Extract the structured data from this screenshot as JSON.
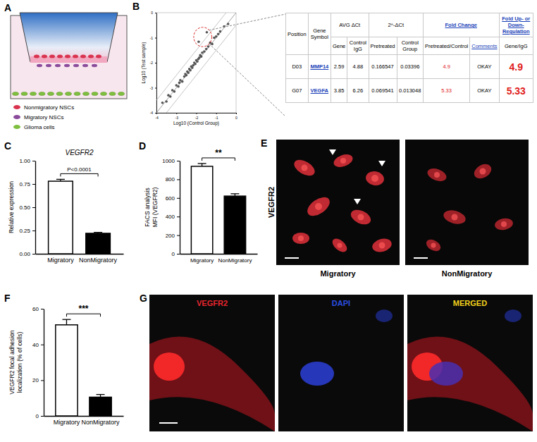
{
  "chart_data": [
    {
      "type": "scatter",
      "xlabel": "Log10 (Control Group)",
      "ylabel": "Log10 (Test sample)",
      "x": [
        -3.7,
        -3.5,
        -3.4,
        -3.3,
        -3.2,
        -3.1,
        -3.0,
        -2.9,
        -2.85,
        -2.8,
        -2.7,
        -2.6,
        -2.55,
        -2.5,
        -2.45,
        -2.4,
        -2.35,
        -2.3,
        -2.25,
        -2.2,
        -2.15,
        -2.1,
        -2.05,
        -2.0,
        -1.95,
        -1.9,
        -1.85,
        -1.8,
        -1.75,
        -1.7,
        -1.6,
        -1.5,
        -1.4,
        -1.3,
        -1.2,
        -1.1,
        -1.0,
        -0.9,
        -0.8,
        -0.6,
        -0.4,
        -1.88,
        -1.47
      ],
      "y": [
        -3.6,
        -3.55,
        -3.3,
        -3.35,
        -3.1,
        -3.15,
        -2.9,
        -2.95,
        -2.8,
        -2.7,
        -2.75,
        -2.55,
        -2.45,
        -2.5,
        -2.35,
        -2.4,
        -2.25,
        -2.3,
        -2.15,
        -2.2,
        -2.1,
        -2.0,
        -2.05,
        -1.9,
        -1.95,
        -1.85,
        -1.8,
        -1.7,
        -1.75,
        -1.6,
        -1.55,
        -1.45,
        -1.35,
        -1.2,
        -1.25,
        -1.0,
        -0.95,
        -0.85,
        -0.75,
        -0.55,
        -0.45,
        -1.16,
        -0.78
      ],
      "xlim": [
        -4,
        0
      ],
      "ylim": [
        -4,
        0
      ],
      "xticks": [
        -4,
        -3,
        -2,
        -1,
        0
      ],
      "yticks": [
        -4,
        -3,
        -2,
        -1,
        0
      ],
      "boundary_offsets": [
        -0.5,
        0,
        0.5
      ],
      "color": "#555555"
    },
    {
      "type": "bar",
      "title": "VEGFR2",
      "ylabel": [
        "Relative expression"
      ],
      "categories": [
        "Migratory",
        "NonMigratory"
      ],
      "values": [
        0.78,
        0.22
      ],
      "errors": [
        0.02,
        0.01
      ],
      "colors": [
        "#ffffff",
        "#000000"
      ],
      "ylim": [
        0,
        1
      ],
      "yticks": [
        {
          "value": 0,
          "label": "0.00"
        },
        {
          "value": 0.25,
          "label": "0.25"
        },
        {
          "value": 0.5,
          "label": "0.50"
        },
        {
          "value": 0.75,
          "label": "0.75"
        },
        {
          "value": 1,
          "label": "1.00"
        }
      ],
      "annotation": "P<0.0001"
    },
    {
      "type": "bar",
      "ylabel": [
        "FACS analysis",
        "MFI (VEGFR2)"
      ],
      "categories": [
        "Migratory",
        "NonMigratory"
      ],
      "values": [
        940,
        620
      ],
      "errors": [
        30,
        25
      ],
      "colors": [
        "#ffffff",
        "#000000"
      ],
      "ylim": [
        0,
        1000
      ],
      "yticks": [
        0,
        200,
        400,
        600,
        800,
        1000
      ],
      "annotation": "**"
    },
    {
      "type": "bar",
      "ylabel": [
        "VEGFR2 focal adhesion",
        "localization (% of cells)"
      ],
      "categories": [
        "Migratory",
        "NonMigratory"
      ],
      "values": [
        51,
        10.5
      ],
      "errors": [
        3,
        1.5
      ],
      "colors": [
        "#ffffff",
        "#000000"
      ],
      "ylim": [
        0,
        60
      ],
      "yticks": [
        0,
        20,
        40,
        60
      ],
      "annotation": "***"
    }
  ],
  "figure": {
    "panel_labels": [
      "A",
      "B",
      "C",
      "D",
      "E",
      "F",
      "G"
    ],
    "schematic_legend": [
      "Nonmigratory NSCs",
      "Migratory NSCs",
      "Glioma cells"
    ],
    "table": {
      "header_row1": [
        "Position",
        "Gene Symbol",
        "AVG ΔCt",
        "2^-ΔCt",
        "Fold Change",
        "Fold Up- or Down-Regulation"
      ],
      "header_row2": [
        "Gene",
        "Control IgG",
        "Pretreated",
        "Control Group",
        "Pretreated/Control",
        "Comments",
        "Gene/IgG"
      ],
      "rows": [
        [
          "D03",
          "MMP14",
          "2.59",
          "4.88",
          "0.166547",
          "0.03396",
          "4.9",
          "OKAY",
          "4.9"
        ],
        [
          "G07",
          "VEGFA",
          "3.85",
          "6.26",
          "0.069541",
          "0.013048",
          "5.33",
          "OKAY",
          "5.33"
        ]
      ]
    },
    "image_row_label": "VEGFR2",
    "e_captions": [
      "Migratory",
      "NonMigratory"
    ],
    "g_captions": [
      "VEGFR2",
      "DAPI",
      "MERGED"
    ]
  }
}
